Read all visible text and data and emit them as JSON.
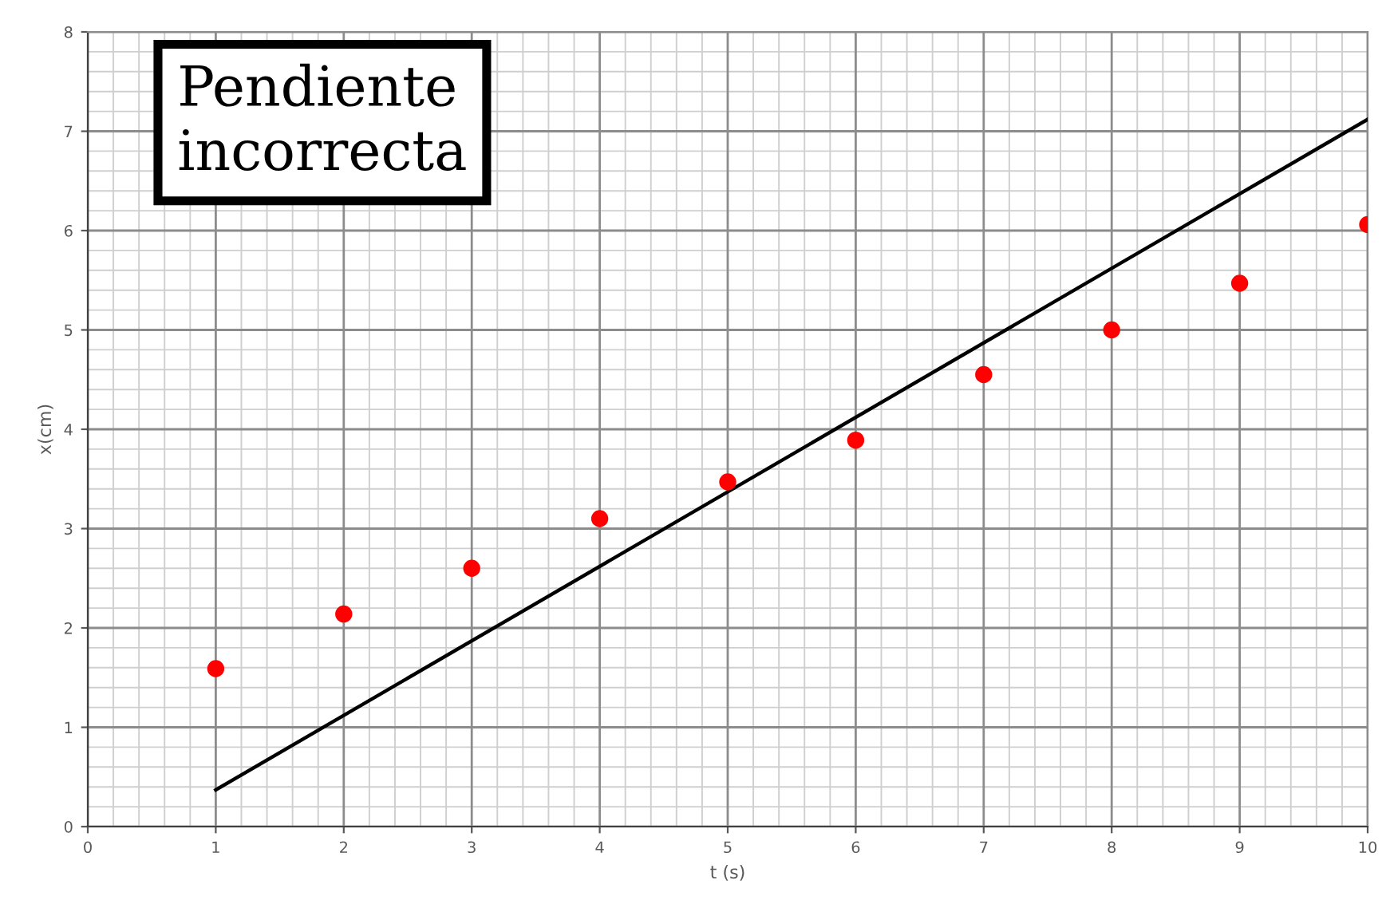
{
  "chart_data": {
    "type": "scatter",
    "xlabel": "t (s)",
    "ylabel": "x(cm)",
    "annotations": [
      "Pendiente\nincorrecta"
    ],
    "x": [
      1,
      2,
      3,
      4,
      5,
      6,
      7,
      8,
      9,
      10
    ],
    "series": [
      {
        "color": "#ff0000",
        "marker": "circle",
        "values": [
          1.59,
          2.14,
          2.6,
          3.1,
          3.47,
          3.89,
          4.55,
          5.0,
          5.47,
          6.06
        ]
      },
      {
        "type": "line",
        "color": "#000000",
        "marker": "none",
        "line_style": "solid",
        "x": [
          1,
          10
        ],
        "values": [
          0.37,
          7.12
        ]
      }
    ],
    "xlim": [
      0,
      10
    ],
    "ylim": [
      0,
      8
    ],
    "xticks": [
      0,
      1,
      2,
      3,
      4,
      5,
      6,
      7,
      8,
      9,
      10
    ],
    "yticks": [
      0,
      1,
      2,
      3,
      4,
      5,
      6,
      7,
      8
    ],
    "grid": true,
    "legend": false
  }
}
